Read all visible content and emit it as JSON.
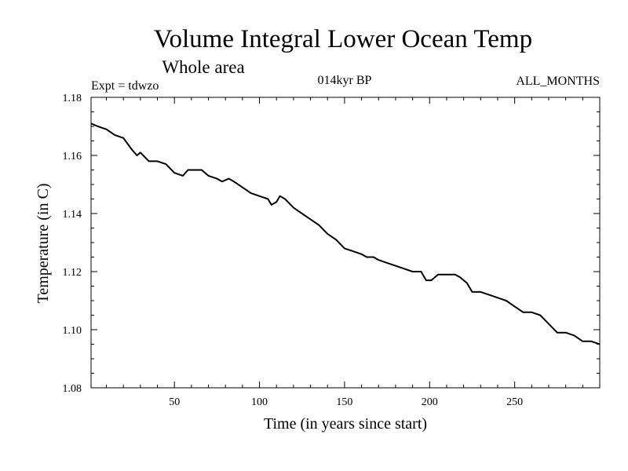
{
  "chart_data": {
    "type": "line",
    "title": "Volume Integral Lower Ocean Temp",
    "subtitle": "Whole area",
    "experiment_label": "Expt = tdwzo",
    "period_label": "014kyr BP",
    "months_label": "ALL_MONTHS",
    "xlabel": "Time (in years since start)",
    "ylabel": "Temperature (in C)",
    "xlim": [
      1,
      300
    ],
    "ylim": [
      1.08,
      1.18
    ],
    "x_ticks": [
      50,
      100,
      150,
      200,
      250
    ],
    "y_ticks": [
      1.08,
      1.1,
      1.12,
      1.14,
      1.16,
      1.18
    ],
    "y_tick_labels": [
      "1.08",
      "1.10",
      "1.12",
      "1.14",
      "1.16",
      "1.18"
    ],
    "grid": false,
    "line_color": "#000000",
    "series": [
      {
        "x": [
          1,
          5,
          10,
          15,
          20,
          25,
          28,
          30,
          35,
          40,
          45,
          50,
          55,
          58,
          62,
          66,
          70,
          75,
          78,
          82,
          85,
          90,
          95,
          100,
          105,
          107,
          110,
          112,
          115,
          120,
          125,
          130,
          135,
          140,
          145,
          150,
          155,
          160,
          163,
          167,
          170,
          175,
          180,
          185,
          190,
          195,
          198,
          201,
          205,
          210,
          215,
          218,
          222,
          225,
          230,
          235,
          240,
          245,
          250,
          255,
          260,
          265,
          270,
          275,
          280,
          285,
          290,
          295,
          300
        ],
        "y": [
          1.171,
          1.17,
          1.169,
          1.167,
          1.166,
          1.162,
          1.16,
          1.161,
          1.158,
          1.158,
          1.157,
          1.154,
          1.153,
          1.155,
          1.155,
          1.155,
          1.153,
          1.152,
          1.151,
          1.152,
          1.151,
          1.149,
          1.147,
          1.146,
          1.145,
          1.143,
          1.144,
          1.146,
          1.145,
          1.142,
          1.14,
          1.138,
          1.136,
          1.133,
          1.131,
          1.128,
          1.127,
          1.126,
          1.125,
          1.125,
          1.124,
          1.123,
          1.122,
          1.121,
          1.12,
          1.12,
          1.117,
          1.117,
          1.119,
          1.119,
          1.119,
          1.118,
          1.116,
          1.113,
          1.113,
          1.112,
          1.111,
          1.11,
          1.108,
          1.106,
          1.106,
          1.105,
          1.102,
          1.099,
          1.099,
          1.098,
          1.096,
          1.096,
          1.095
        ]
      }
    ]
  }
}
